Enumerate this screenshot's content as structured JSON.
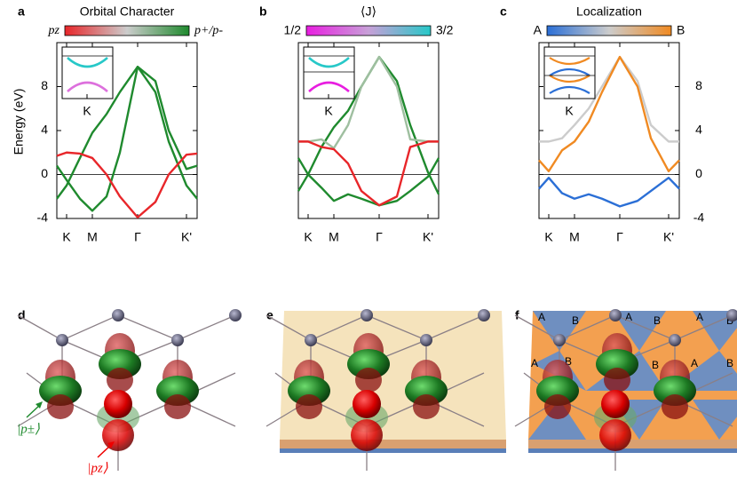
{
  "chart_data": [
    {
      "type": "line",
      "letter": "a",
      "title": "Orbital Character",
      "colorbar_labels": [
        "pz",
        "p+/p-"
      ],
      "colorbar_colors": [
        "#e8262a",
        "#cccccc",
        "#1f8a2e"
      ],
      "inset_label": "K",
      "ylabel": "Energy (eV)",
      "x": [
        -11,
        0,
        15,
        29,
        45,
        60,
        80,
        100,
        115,
        135,
        147
      ],
      "series": [
        {
          "color": "#1f8a2e",
          "values": [
            -2.2,
            -1,
            1.5,
            3.8,
            5.5,
            7.5,
            9.8,
            7.5,
            3,
            -1,
            -2.2
          ]
        },
        {
          "color": "#1f8a2e",
          "values": [
            0.8,
            -0.5,
            -2.2,
            -3.3,
            -2,
            2,
            9.8,
            8.5,
            4,
            0.5,
            0.8
          ]
        },
        {
          "color": "#e8262a",
          "values": [
            1.7,
            2,
            1.9,
            1.5,
            0,
            -2,
            -3.9,
            -2.5,
            0,
            1.8,
            1.9
          ]
        }
      ],
      "xlim": [
        -11,
        147
      ],
      "ylim": [
        -4,
        12
      ],
      "xticks": [
        {
          "value": 0,
          "label": "K"
        },
        {
          "value": 29,
          "label": "M"
        },
        {
          "value": 80,
          "label": "Γ"
        },
        {
          "value": 135,
          "label": "K'"
        }
      ],
      "yticks": [
        -4,
        0,
        4,
        8
      ],
      "yaxis_side": "left"
    },
    {
      "type": "line",
      "letter": "b",
      "title": "⟨J⟩",
      "colorbar_labels": [
        "1/2",
        "3/2"
      ],
      "colorbar_colors": [
        "#e81ee0",
        "#c8a0d8",
        "#27c8c8"
      ],
      "inset_label": "K",
      "x": [
        -11,
        0,
        15,
        29,
        45,
        60,
        80,
        100,
        115,
        135,
        147
      ],
      "series": [
        {
          "color": "#1f8a2e",
          "values": [
            -1.5,
            0,
            2.5,
            4.3,
            5.8,
            8,
            10.7,
            8.5,
            4.5,
            0.2,
            -1.8
          ]
        },
        {
          "color": "#9fbfa0",
          "values": [
            3,
            3,
            3.2,
            2.4,
            4.5,
            8,
            10.7,
            8,
            3.2,
            3,
            3
          ]
        },
        {
          "color": "#1f8a2e",
          "values": [
            1.5,
            0,
            -1.2,
            -2.4,
            -1.8,
            -2.2,
            -2.8,
            -2.4,
            -1.5,
            -0.2,
            1.5
          ]
        },
        {
          "color": "#e8262a",
          "values": [
            3,
            3,
            2.5,
            2.3,
            1,
            -1.5,
            -2.8,
            -2,
            2.5,
            3,
            3
          ]
        }
      ],
      "xlim": [
        -11,
        147
      ],
      "ylim": [
        -4,
        12
      ],
      "xticks": [
        {
          "value": 0,
          "label": "K"
        },
        {
          "value": 29,
          "label": "M"
        },
        {
          "value": 80,
          "label": "Γ"
        },
        {
          "value": 135,
          "label": "K'"
        }
      ]
    },
    {
      "type": "line",
      "letter": "c",
      "title": "Localization",
      "colorbar_labels": [
        "A",
        "B"
      ],
      "colorbar_colors": [
        "#2b6fd6",
        "#cccccc",
        "#f08a22"
      ],
      "inset_label": "K",
      "x": [
        -11,
        0,
        15,
        29,
        45,
        60,
        80,
        100,
        115,
        135,
        147
      ],
      "series": [
        {
          "color": "#cccccc",
          "values": [
            3,
            3,
            3.3,
            4.5,
            6,
            8,
            10.7,
            8.5,
            4.5,
            3,
            3
          ]
        },
        {
          "color": "#f08a22",
          "values": [
            1.3,
            0.3,
            2.2,
            3,
            4.8,
            7.5,
            10.7,
            8,
            3.3,
            0.3,
            1.3
          ]
        },
        {
          "color": "#2b6fd6",
          "values": [
            -1.3,
            -0.3,
            -1.7,
            -2.2,
            -1.8,
            -2.2,
            -2.9,
            -2.4,
            -1.5,
            -0.3,
            -1.3
          ]
        }
      ],
      "xlim": [
        -11,
        147
      ],
      "ylim": [
        -4,
        12
      ],
      "xticks": [
        {
          "value": 0,
          "label": "K"
        },
        {
          "value": 29,
          "label": "M"
        },
        {
          "value": 80,
          "label": "Γ"
        },
        {
          "value": 135,
          "label": "K'"
        }
      ],
      "yticks": [
        -4,
        0,
        4,
        8
      ],
      "yaxis_side": "right"
    }
  ],
  "scenes": [
    {
      "letter": "d",
      "labels": [
        "|p±⟩",
        "|pz⟩"
      ]
    },
    {
      "letter": "e"
    },
    {
      "letter": "f",
      "region_labels": [
        "A",
        "B",
        "A",
        "B",
        "A",
        "B",
        "A",
        "B",
        "A",
        "B",
        "A",
        "B"
      ]
    }
  ]
}
